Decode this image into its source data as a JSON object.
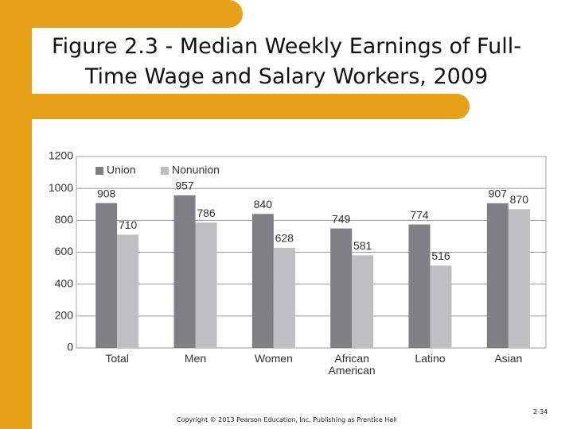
{
  "slide": {
    "copyright": "Copyright © 2013 Pearson Education, Inc. Publishing as Prentice Hall",
    "page": "2-34"
  },
  "chart_data": {
    "type": "bar",
    "title": "Figure 2.3 - Median Weekly Earnings of Full-Time Wage and Salary Workers, 2009",
    "categories": [
      "Total",
      "Men",
      "Women",
      "African American",
      "Latino",
      "Asian"
    ],
    "series": [
      {
        "name": "Union",
        "color": "#7f7f84",
        "values": [
          908,
          957,
          840,
          749,
          774,
          907
        ]
      },
      {
        "name": "Nonunion",
        "color": "#bfbfc1",
        "values": [
          710,
          786,
          628,
          581,
          516,
          870
        ]
      }
    ],
    "ylim": [
      0,
      1200
    ],
    "yticks": [
      0,
      200,
      400,
      600,
      800,
      1000,
      1200
    ],
    "grid": true,
    "legend": "top-left"
  }
}
